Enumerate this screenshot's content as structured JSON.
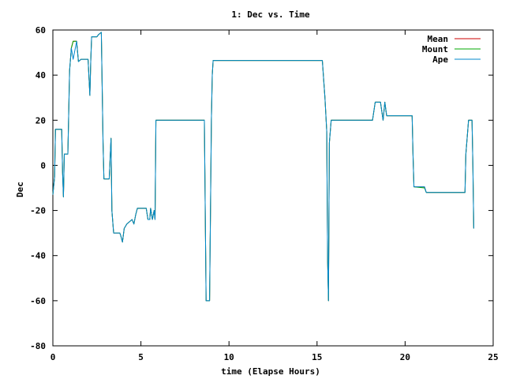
{
  "chart_data": {
    "type": "line",
    "title": "1: Dec vs. Time",
    "xlabel": "time (Elapse Hours)",
    "ylabel": "Dec",
    "xlim": [
      0,
      25
    ],
    "ylim": [
      -80,
      60
    ],
    "xticks": [
      0,
      5,
      10,
      15,
      20,
      25
    ],
    "yticks": [
      -80,
      -60,
      -40,
      -20,
      0,
      20,
      40,
      60
    ],
    "grid": false,
    "legend_position": "top-right",
    "series": [
      {
        "name": "Mean",
        "color": "#cc0000",
        "points": [
          [
            0,
            -13
          ],
          [
            0.1,
            -5
          ],
          [
            0.15,
            16
          ],
          [
            0.5,
            16
          ],
          [
            0.55,
            -3
          ],
          [
            0.6,
            -14
          ],
          [
            0.65,
            5
          ],
          [
            0.85,
            5
          ],
          [
            0.95,
            42
          ],
          [
            1.05,
            52
          ],
          [
            1.15,
            55
          ],
          [
            1.35,
            55
          ],
          [
            1.45,
            46
          ],
          [
            1.6,
            47
          ],
          [
            2.0,
            47
          ],
          [
            2.1,
            31
          ],
          [
            2.15,
            46
          ],
          [
            2.2,
            57
          ],
          [
            2.5,
            57
          ],
          [
            2.6,
            58
          ],
          [
            2.75,
            59
          ],
          [
            2.85,
            10
          ],
          [
            2.9,
            -6
          ],
          [
            3.2,
            -6
          ],
          [
            3.3,
            12
          ],
          [
            3.35,
            -20
          ],
          [
            3.45,
            -30
          ],
          [
            3.8,
            -30
          ],
          [
            3.85,
            -31
          ],
          [
            3.95,
            -34
          ],
          [
            4.05,
            -28
          ],
          [
            4.2,
            -26
          ],
          [
            4.5,
            -24
          ],
          [
            4.6,
            -26
          ],
          [
            4.7,
            -22
          ],
          [
            4.8,
            -19
          ],
          [
            5.3,
            -19
          ],
          [
            5.4,
            -24
          ],
          [
            5.5,
            -24
          ],
          [
            5.55,
            -19
          ],
          [
            5.65,
            -24
          ],
          [
            5.75,
            -20
          ],
          [
            5.8,
            -24
          ],
          [
            5.85,
            20
          ],
          [
            8.6,
            20
          ],
          [
            8.7,
            -60
          ],
          [
            8.9,
            -60
          ],
          [
            9.0,
            20
          ],
          [
            9.05,
            40
          ],
          [
            9.1,
            46.5
          ],
          [
            15.3,
            46.5
          ],
          [
            15.45,
            30
          ],
          [
            15.55,
            15
          ],
          [
            15.6,
            -42
          ],
          [
            15.65,
            -60
          ],
          [
            15.7,
            10
          ],
          [
            15.8,
            20
          ],
          [
            18.0,
            20
          ],
          [
            18.15,
            20
          ],
          [
            18.3,
            28
          ],
          [
            18.6,
            28
          ],
          [
            18.75,
            20
          ],
          [
            18.85,
            28
          ],
          [
            18.95,
            22
          ],
          [
            20.4,
            22
          ],
          [
            20.45,
            5
          ],
          [
            20.5,
            -9.5
          ],
          [
            21.1,
            -9.5
          ],
          [
            21.2,
            -12
          ],
          [
            23.4,
            -12
          ],
          [
            23.45,
            5
          ],
          [
            23.6,
            20
          ],
          [
            23.8,
            20
          ],
          [
            23.85,
            0
          ],
          [
            23.9,
            -28
          ]
        ]
      },
      {
        "name": "Mount",
        "color": "#00aa00",
        "points": [
          [
            0,
            -13
          ],
          [
            0.1,
            -5
          ],
          [
            0.15,
            16
          ],
          [
            0.5,
            16
          ],
          [
            0.55,
            -3
          ],
          [
            0.6,
            -14
          ],
          [
            0.65,
            5
          ],
          [
            0.85,
            5
          ],
          [
            0.95,
            42
          ],
          [
            1.05,
            52
          ],
          [
            1.15,
            55
          ],
          [
            1.35,
            55
          ],
          [
            1.45,
            46
          ],
          [
            1.6,
            47
          ],
          [
            2.0,
            47
          ],
          [
            2.1,
            31
          ],
          [
            2.15,
            46
          ],
          [
            2.2,
            57
          ],
          [
            2.5,
            57
          ],
          [
            2.6,
            58
          ],
          [
            2.75,
            59
          ],
          [
            2.85,
            10
          ],
          [
            2.9,
            -6
          ],
          [
            3.2,
            -6
          ],
          [
            3.3,
            12
          ],
          [
            3.35,
            -20
          ],
          [
            3.45,
            -30
          ],
          [
            3.8,
            -30
          ],
          [
            3.85,
            -31
          ],
          [
            3.95,
            -34
          ],
          [
            4.05,
            -28
          ],
          [
            4.2,
            -26
          ],
          [
            4.5,
            -24
          ],
          [
            4.6,
            -26
          ],
          [
            4.7,
            -22
          ],
          [
            4.8,
            -19
          ],
          [
            5.3,
            -19
          ],
          [
            5.4,
            -24
          ],
          [
            5.5,
            -24
          ],
          [
            5.55,
            -19
          ],
          [
            5.65,
            -24
          ],
          [
            5.75,
            -20
          ],
          [
            5.8,
            -24
          ],
          [
            5.85,
            20
          ],
          [
            8.6,
            20
          ],
          [
            8.7,
            -60
          ],
          [
            8.9,
            -60
          ],
          [
            9.0,
            20
          ],
          [
            9.05,
            40
          ],
          [
            9.1,
            46.5
          ],
          [
            15.3,
            46.5
          ],
          [
            15.45,
            30
          ],
          [
            15.55,
            15
          ],
          [
            15.6,
            -42
          ],
          [
            15.65,
            -60
          ],
          [
            15.7,
            10
          ],
          [
            15.8,
            20
          ],
          [
            18.0,
            20
          ],
          [
            18.15,
            20
          ],
          [
            18.3,
            28
          ],
          [
            18.6,
            28
          ],
          [
            18.75,
            20
          ],
          [
            18.85,
            28
          ],
          [
            18.95,
            22
          ],
          [
            20.4,
            22
          ],
          [
            20.45,
            5
          ],
          [
            20.5,
            -9.5
          ],
          [
            21.1,
            -10
          ],
          [
            21.2,
            -12
          ],
          [
            23.4,
            -12
          ],
          [
            23.45,
            5
          ],
          [
            23.6,
            20
          ],
          [
            23.8,
            20
          ],
          [
            23.85,
            0
          ],
          [
            23.9,
            -28
          ]
        ]
      },
      {
        "name": "Ape",
        "color": "#0088cc",
        "points": [
          [
            0,
            -13
          ],
          [
            0.1,
            -5
          ],
          [
            0.15,
            16
          ],
          [
            0.5,
            16
          ],
          [
            0.55,
            -3
          ],
          [
            0.6,
            -14
          ],
          [
            0.65,
            5
          ],
          [
            0.85,
            5
          ],
          [
            0.95,
            42
          ],
          [
            1.05,
            52
          ],
          [
            1.15,
            47
          ],
          [
            1.35,
            55
          ],
          [
            1.45,
            46
          ],
          [
            1.6,
            47
          ],
          [
            2.0,
            47
          ],
          [
            2.1,
            31
          ],
          [
            2.15,
            46
          ],
          [
            2.2,
            57
          ],
          [
            2.5,
            57
          ],
          [
            2.6,
            58
          ],
          [
            2.75,
            59
          ],
          [
            2.85,
            10
          ],
          [
            2.9,
            -6
          ],
          [
            3.2,
            -6
          ],
          [
            3.3,
            12
          ],
          [
            3.35,
            -20
          ],
          [
            3.45,
            -30
          ],
          [
            3.8,
            -30
          ],
          [
            3.85,
            -31
          ],
          [
            3.95,
            -34
          ],
          [
            4.05,
            -28
          ],
          [
            4.2,
            -26
          ],
          [
            4.5,
            -24
          ],
          [
            4.6,
            -26
          ],
          [
            4.7,
            -22
          ],
          [
            4.8,
            -19
          ],
          [
            5.3,
            -19
          ],
          [
            5.4,
            -24
          ],
          [
            5.5,
            -24
          ],
          [
            5.55,
            -19
          ],
          [
            5.65,
            -24
          ],
          [
            5.75,
            -20
          ],
          [
            5.8,
            -24
          ],
          [
            5.85,
            20
          ],
          [
            8.6,
            20
          ],
          [
            8.7,
            -60
          ],
          [
            8.9,
            -60
          ],
          [
            9.0,
            20
          ],
          [
            9.05,
            40
          ],
          [
            9.1,
            46.5
          ],
          [
            15.3,
            46.5
          ],
          [
            15.45,
            30
          ],
          [
            15.55,
            15
          ],
          [
            15.6,
            -42
          ],
          [
            15.65,
            -60
          ],
          [
            15.7,
            10
          ],
          [
            15.8,
            20
          ],
          [
            18.0,
            20
          ],
          [
            18.15,
            20
          ],
          [
            18.3,
            28
          ],
          [
            18.6,
            28
          ],
          [
            18.75,
            20
          ],
          [
            18.85,
            28
          ],
          [
            18.95,
            22
          ],
          [
            20.4,
            22
          ],
          [
            20.45,
            5
          ],
          [
            20.5,
            -9.5
          ],
          [
            21.1,
            -9.5
          ],
          [
            21.2,
            -12
          ],
          [
            23.4,
            -12
          ],
          [
            23.45,
            5
          ],
          [
            23.6,
            20
          ],
          [
            23.8,
            20
          ],
          [
            23.85,
            0
          ],
          [
            23.9,
            -28
          ]
        ]
      }
    ]
  }
}
